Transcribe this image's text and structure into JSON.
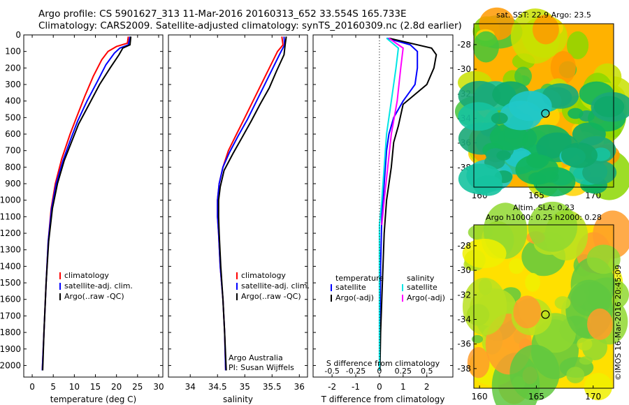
{
  "header": {
    "line1": "Argo profile: CS 5901627_313 11-Mar-2016 20160313_652 33.554S 165.733E",
    "line2": "Climatology: CARS2009. Satellite-adjusted climatology: synTS_20160309.nc (2.8d earlier)"
  },
  "colors": {
    "climatology": "#ff0000",
    "satellite": "#0000ff",
    "argo": "#000000",
    "salinity_satellite": "#00e5e5",
    "salinity_argo": "#ff00ff"
  },
  "credit": "©IMOS 16-Mar-2016 20:45:09",
  "chart_data": [
    {
      "type": "line",
      "name": "temperature-profile",
      "xlabel": "temperature (deg C)",
      "ylabel": "",
      "xlim": [
        -2,
        31
      ],
      "ylim": [
        2070,
        0
      ],
      "xticks": [
        0,
        5,
        10,
        15,
        20,
        25,
        30
      ],
      "yticks": [
        0,
        100,
        200,
        300,
        400,
        500,
        600,
        700,
        800,
        900,
        1000,
        1100,
        1200,
        1300,
        1400,
        1500,
        1600,
        1700,
        1800,
        1900,
        2000
      ],
      "legend": [
        "climatology",
        "satellite-adj. clim.",
        "Argo(..raw -QC)"
      ],
      "series": [
        {
          "name": "climatology",
          "color": "#ff0000",
          "points": [
            [
              22.8,
              10
            ],
            [
              22.6,
              50
            ],
            [
              20,
              70
            ],
            [
              18,
              100
            ],
            [
              16.5,
              150
            ],
            [
              14.5,
              250
            ],
            [
              12.5,
              370
            ],
            [
              10.5,
              500
            ],
            [
              9,
              600
            ],
            [
              7,
              750
            ],
            [
              5.5,
              900
            ],
            [
              4.5,
              1050
            ],
            [
              3.8,
              1250
            ],
            [
              3.3,
              1500
            ],
            [
              2.8,
              1800
            ],
            [
              2.4,
              2030
            ]
          ]
        },
        {
          "name": "satellite-adj. clim.",
          "color": "#0000ff",
          "points": [
            [
              23.2,
              10
            ],
            [
              22.8,
              60
            ],
            [
              20.8,
              80
            ],
            [
              19.5,
              110
            ],
            [
              17.5,
              180
            ],
            [
              15.5,
              280
            ],
            [
              13,
              400
            ],
            [
              10.8,
              520
            ],
            [
              9.3,
              620
            ],
            [
              7.3,
              760
            ],
            [
              5.7,
              900
            ],
            [
              4.6,
              1050
            ],
            [
              3.8,
              1250
            ],
            [
              3.3,
              1500
            ],
            [
              2.8,
              1800
            ],
            [
              2.4,
              2030
            ]
          ]
        },
        {
          "name": "Argo(..raw -QC)",
          "color": "#000000",
          "points": [
            [
              23.4,
              10
            ],
            [
              23.2,
              60
            ],
            [
              21.5,
              80
            ],
            [
              20.6,
              120
            ],
            [
              18.5,
              200
            ],
            [
              16,
              300
            ],
            [
              13.5,
              420
            ],
            [
              11,
              540
            ],
            [
              9.6,
              630
            ],
            [
              7.6,
              760
            ],
            [
              6,
              900
            ],
            [
              4.8,
              1050
            ],
            [
              3.9,
              1250
            ],
            [
              3.3,
              1500
            ],
            [
              2.8,
              1800
            ],
            [
              2.5,
              2030
            ]
          ]
        }
      ]
    },
    {
      "type": "line",
      "name": "salinity-profile",
      "xlabel": "salinity",
      "xlim": [
        33.6,
        36.15
      ],
      "ylim": [
        2070,
        0
      ],
      "xticks": [
        34,
        34.5,
        35,
        35.5,
        36
      ],
      "legend": [
        "climatology",
        "satellite-adj. clim.",
        "Argo(..raw -QC)"
      ],
      "annotation": [
        "Argo Australia",
        "PI: Susan Wijffels"
      ],
      "series": [
        {
          "name": "climatology",
          "color": "#ff0000",
          "points": [
            [
              35.68,
              10
            ],
            [
              35.7,
              60
            ],
            [
              35.6,
              100
            ],
            [
              35.45,
              200
            ],
            [
              35.3,
              300
            ],
            [
              35.15,
              400
            ],
            [
              35.0,
              500
            ],
            [
              34.85,
              600
            ],
            [
              34.7,
              700
            ],
            [
              34.6,
              800
            ],
            [
              34.53,
              900
            ],
            [
              34.5,
              1000
            ],
            [
              34.5,
              1100
            ],
            [
              34.52,
              1200
            ],
            [
              34.55,
              1400
            ],
            [
              34.6,
              1600
            ],
            [
              34.63,
              1800
            ],
            [
              34.65,
              2030
            ]
          ]
        },
        {
          "name": "satellite-adj. clim.",
          "color": "#0000ff",
          "points": [
            [
              35.72,
              10
            ],
            [
              35.73,
              60
            ],
            [
              35.65,
              110
            ],
            [
              35.5,
              210
            ],
            [
              35.35,
              310
            ],
            [
              35.2,
              410
            ],
            [
              35.05,
              510
            ],
            [
              34.88,
              610
            ],
            [
              34.72,
              710
            ],
            [
              34.6,
              800
            ],
            [
              34.53,
              900
            ],
            [
              34.5,
              1000
            ],
            [
              34.5,
              1100
            ],
            [
              34.52,
              1200
            ],
            [
              34.55,
              1400
            ],
            [
              34.6,
              1600
            ],
            [
              34.63,
              1800
            ],
            [
              34.65,
              2030
            ]
          ]
        },
        {
          "name": "Argo(..raw -QC)",
          "color": "#000000",
          "points": [
            [
              35.76,
              10
            ],
            [
              35.74,
              60
            ],
            [
              35.72,
              120
            ],
            [
              35.58,
              220
            ],
            [
              35.45,
              320
            ],
            [
              35.28,
              420
            ],
            [
              35.12,
              520
            ],
            [
              34.95,
              620
            ],
            [
              34.78,
              720
            ],
            [
              34.62,
              820
            ],
            [
              34.55,
              920
            ],
            [
              34.52,
              1000
            ],
            [
              34.52,
              1100
            ],
            [
              34.53,
              1200
            ],
            [
              34.56,
              1400
            ],
            [
              34.6,
              1600
            ],
            [
              34.63,
              1800
            ],
            [
              34.66,
              2030
            ]
          ]
        }
      ]
    },
    {
      "type": "line",
      "name": "difference-profile",
      "xlabel": "T difference from climatology",
      "xlabel_top": "S difference from climatology",
      "xlim": [
        -2.8,
        3.1
      ],
      "ylim": [
        2070,
        0
      ],
      "xticks": [
        -2,
        -1,
        0,
        1,
        2
      ],
      "sticks_labels": [
        "-0.5",
        "-0.25",
        "0",
        "0.25",
        "0.5"
      ],
      "legend_temperature": {
        "heading": "temperature",
        "items": [
          "satellite",
          "Argo(-adj)"
        ]
      },
      "legend_salinity": {
        "heading": "salinity",
        "items": [
          "satellite",
          "Argo(-adj)"
        ]
      },
      "series": [
        {
          "name": "temperature satellite",
          "color": "#0000ff",
          "points": [
            [
              0.3,
              20
            ],
            [
              1.3,
              60
            ],
            [
              1.6,
              100
            ],
            [
              1.6,
              200
            ],
            [
              1.5,
              300
            ],
            [
              1.0,
              400
            ],
            [
              0.6,
              500
            ],
            [
              0.4,
              600
            ],
            [
              0.3,
              700
            ],
            [
              0.2,
              900
            ],
            [
              0.1,
              1100
            ],
            [
              0.05,
              1400
            ],
            [
              0.02,
              1800
            ],
            [
              0.0,
              2030
            ]
          ]
        },
        {
          "name": "temperature Argo(-adj)",
          "color": "#000000",
          "points": [
            [
              0.4,
              20
            ],
            [
              2.2,
              80
            ],
            [
              2.4,
              120
            ],
            [
              2.3,
              200
            ],
            [
              2.0,
              300
            ],
            [
              1.0,
              420
            ],
            [
              0.8,
              550
            ],
            [
              0.6,
              650
            ],
            [
              0.5,
              800
            ],
            [
              0.4,
              900
            ],
            [
              0.3,
              1000
            ],
            [
              0.2,
              1200
            ],
            [
              0.15,
              1400
            ],
            [
              0.05,
              1800
            ],
            [
              0.02,
              2030
            ]
          ]
        },
        {
          "name": "salinity satellite",
          "color": "#00e5e5",
          "points": [
            [
              0.3,
              20
            ],
            [
              0.8,
              80
            ],
            [
              0.7,
              200
            ],
            [
              0.5,
              400
            ],
            [
              0.3,
              600
            ],
            [
              0.2,
              800
            ],
            [
              0.1,
              1000
            ],
            [
              0.0,
              1150
            ],
            [
              0.0,
              1500
            ],
            [
              0.0,
              1800
            ],
            [
              0.0,
              2030
            ]
          ]
        },
        {
          "name": "salinity Argo(-adj)",
          "color": "#ff00ff",
          "points": [
            [
              0.4,
              20
            ],
            [
              1.0,
              80
            ],
            [
              0.9,
              200
            ],
            [
              0.75,
              400
            ],
            [
              0.5,
              600
            ],
            [
              0.35,
              800
            ],
            [
              0.2,
              1000
            ],
            [
              0.1,
              1150
            ]
          ]
        }
      ]
    },
    {
      "type": "heatmap",
      "name": "sst-map",
      "title": "sat. SST: 22.9 Argo: 23.5",
      "xticks": [
        160,
        165,
        170
      ],
      "yticks": [
        -28,
        -30,
        -32,
        -34,
        -36,
        -38
      ],
      "xlim": [
        159.5,
        171.8
      ],
      "ylim": [
        -26.3,
        -39.6
      ],
      "marker": [
        165.8,
        -33.6
      ]
    },
    {
      "type": "heatmap",
      "name": "sla-map",
      "title_lines": [
        "Altim. SLA: 0.23",
        "Argo h1000: 0.25 h2000: 0.28"
      ],
      "xticks": [
        160,
        165,
        170
      ],
      "yticks": [
        -28,
        -30,
        -32,
        -34,
        -36,
        -38
      ],
      "xlim": [
        159.5,
        171.8
      ],
      "ylim": [
        -26.3,
        -39.6
      ],
      "marker": [
        165.8,
        -33.6
      ]
    }
  ]
}
